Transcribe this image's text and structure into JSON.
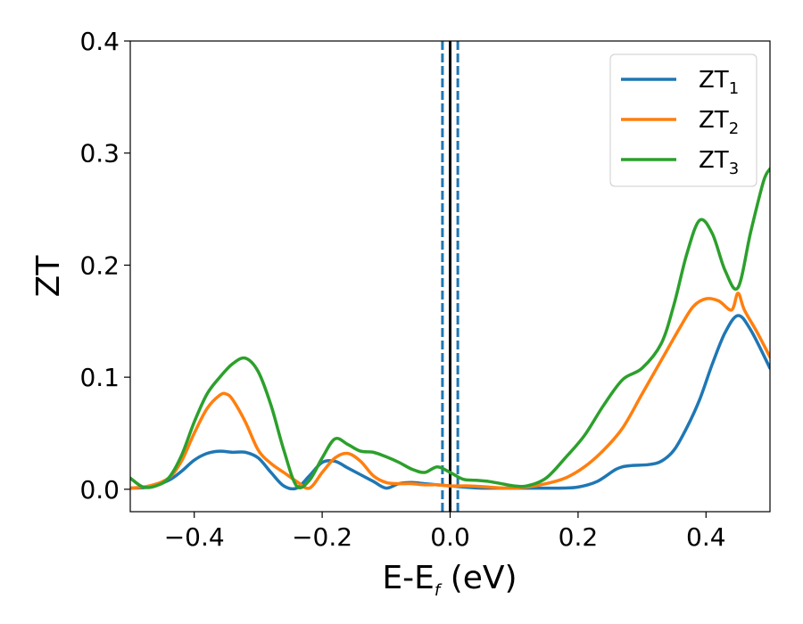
{
  "chart_data": {
    "type": "line",
    "xlabel": {
      "base": "E-E",
      "sub": "f",
      "suffix": " (eV)"
    },
    "ylabel": "ZT",
    "xlim": [
      -0.5,
      0.5
    ],
    "ylim": [
      -0.02,
      0.4
    ],
    "x_ticks": [
      -0.4,
      -0.2,
      0.0,
      0.2,
      0.4
    ],
    "x_tick_labels": [
      "−0.4",
      "−0.2",
      "0.0",
      "0.2",
      "0.4"
    ],
    "y_ticks": [
      0.0,
      0.1,
      0.2,
      0.3,
      0.4
    ],
    "y_tick_labels": [
      "0.0",
      "0.1",
      "0.2",
      "0.3",
      "0.4"
    ],
    "legend_position": "top-right",
    "grid": false,
    "series": [
      {
        "name": {
          "base": "ZT",
          "sub": "1"
        },
        "color": "#1f77b4",
        "x": [
          -0.5,
          -0.47,
          -0.44,
          -0.42,
          -0.4,
          -0.38,
          -0.36,
          -0.34,
          -0.32,
          -0.3,
          -0.28,
          -0.26,
          -0.24,
          -0.22,
          -0.2,
          -0.18,
          -0.16,
          -0.14,
          -0.12,
          -0.1,
          -0.08,
          -0.06,
          -0.04,
          -0.02,
          0.0,
          0.02,
          0.05,
          0.08,
          0.11,
          0.14,
          0.17,
          0.2,
          0.23,
          0.26,
          0.28,
          0.31,
          0.33,
          0.35,
          0.37,
          0.39,
          0.41,
          0.43,
          0.45,
          0.47,
          0.5
        ],
        "y": [
          0.001,
          0.002,
          0.008,
          0.016,
          0.026,
          0.032,
          0.034,
          0.033,
          0.033,
          0.028,
          0.015,
          0.003,
          0.001,
          0.012,
          0.024,
          0.025,
          0.019,
          0.013,
          0.007,
          0.001,
          0.005,
          0.006,
          0.005,
          0.004,
          0.003,
          0.002,
          0.001,
          0.001,
          0.001,
          0.001,
          0.001,
          0.002,
          0.007,
          0.018,
          0.021,
          0.022,
          0.025,
          0.035,
          0.055,
          0.08,
          0.112,
          0.14,
          0.155,
          0.142,
          0.108
        ]
      },
      {
        "name": {
          "base": "ZT",
          "sub": "2"
        },
        "color": "#ff7f0e",
        "x": [
          -0.5,
          -0.47,
          -0.44,
          -0.42,
          -0.4,
          -0.38,
          -0.36,
          -0.35,
          -0.34,
          -0.32,
          -0.3,
          -0.28,
          -0.26,
          -0.24,
          -0.22,
          -0.2,
          -0.18,
          -0.16,
          -0.14,
          -0.12,
          -0.1,
          -0.08,
          -0.06,
          -0.04,
          -0.02,
          0.0,
          0.03,
          0.06,
          0.09,
          0.12,
          0.15,
          0.18,
          0.21,
          0.24,
          0.27,
          0.3,
          0.33,
          0.36,
          0.38,
          0.4,
          0.42,
          0.44,
          0.45,
          0.46,
          0.48,
          0.5
        ],
        "y": [
          0.001,
          0.003,
          0.01,
          0.025,
          0.05,
          0.072,
          0.084,
          0.085,
          0.08,
          0.06,
          0.035,
          0.023,
          0.015,
          0.007,
          0.001,
          0.015,
          0.028,
          0.032,
          0.025,
          0.012,
          0.006,
          0.005,
          0.005,
          0.004,
          0.004,
          0.003,
          0.003,
          0.002,
          0.001,
          0.002,
          0.005,
          0.01,
          0.02,
          0.035,
          0.055,
          0.085,
          0.115,
          0.145,
          0.163,
          0.17,
          0.168,
          0.16,
          0.175,
          0.16,
          0.14,
          0.118
        ]
      },
      {
        "name": {
          "base": "ZT",
          "sub": "3"
        },
        "color": "#2ca02c",
        "x": [
          -0.5,
          -0.48,
          -0.46,
          -0.44,
          -0.42,
          -0.4,
          -0.38,
          -0.36,
          -0.34,
          -0.32,
          -0.3,
          -0.28,
          -0.26,
          -0.24,
          -0.22,
          -0.2,
          -0.18,
          -0.16,
          -0.14,
          -0.12,
          -0.1,
          -0.08,
          -0.06,
          -0.04,
          -0.02,
          0.0,
          0.02,
          0.04,
          0.06,
          0.08,
          0.1,
          0.12,
          0.15,
          0.18,
          0.21,
          0.24,
          0.27,
          0.3,
          0.33,
          0.35,
          0.37,
          0.39,
          0.41,
          0.43,
          0.45,
          0.47,
          0.49,
          0.5
        ],
        "y": [
          0.01,
          0.002,
          0.003,
          0.01,
          0.03,
          0.06,
          0.085,
          0.1,
          0.112,
          0.117,
          0.105,
          0.075,
          0.035,
          0.003,
          0.008,
          0.028,
          0.045,
          0.04,
          0.034,
          0.033,
          0.029,
          0.024,
          0.018,
          0.015,
          0.02,
          0.015,
          0.009,
          0.008,
          0.007,
          0.005,
          0.003,
          0.003,
          0.01,
          0.028,
          0.048,
          0.075,
          0.098,
          0.108,
          0.13,
          0.165,
          0.21,
          0.24,
          0.228,
          0.195,
          0.18,
          0.23,
          0.275,
          0.286
        ]
      }
    ],
    "vertical_lines": [
      {
        "x": -0.012,
        "style": "dashed",
        "color": "#1f77b4"
      },
      {
        "x": 0.012,
        "style": "dashed",
        "color": "#1f77b4"
      },
      {
        "x": 0.0,
        "style": "solid",
        "color": "#000000"
      }
    ]
  }
}
